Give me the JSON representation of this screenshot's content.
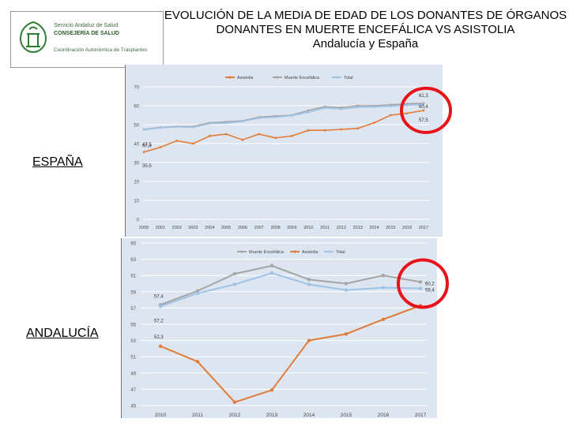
{
  "logo": {
    "line1": "Servicio Andaluz de Salud",
    "line2": "CONSEJERÍA DE SALUD",
    "line3": "Coordinación Autonómica de Trasplantes"
  },
  "title": {
    "line1": "EVOLUCIÓN DE LA MEDIA DE EDAD DE LOS DONANTES DE ÓRGANOS",
    "line2": "DONANTES EN MUERTE ENCEFÁLICA VS ASISTOLIA",
    "line3": "Andalucía y España"
  },
  "labels": {
    "spain": "ESPAÑA",
    "andalucia": "ANDALUCÍA"
  },
  "colors": {
    "asistolia": "#e07b39",
    "muerte_encefalica": "#a5a5a5",
    "total": "#9dc3e6",
    "panel": "#dde6f0",
    "highlight": "#e8141b"
  },
  "chart_data": [
    {
      "type": "line",
      "categories": [
        "2000",
        "2001",
        "2002",
        "2003",
        "2004",
        "2005",
        "2006",
        "2007",
        "2008",
        "2009",
        "2010",
        "2011",
        "2012",
        "2013",
        "2014",
        "2015",
        "2016",
        "2017"
      ],
      "ylim": [
        0,
        70
      ],
      "yticks": [
        "0",
        "10",
        "20",
        "30",
        "40",
        "50",
        "60",
        "70"
      ],
      "legend_position": "top",
      "series": [
        {
          "name": "Asistolia",
          "color": "#e07b39",
          "values": [
            35.5,
            38,
            41.5,
            40,
            44,
            45,
            42,
            45,
            43,
            44,
            47,
            47,
            47.5,
            48,
            51,
            55,
            56,
            57.5
          ]
        },
        {
          "name": "Muerte Encefálica",
          "color": "#a5a5a5",
          "values": [
            47.5,
            48.5,
            49,
            49,
            51,
            51.5,
            52,
            54,
            54.5,
            55,
            57.5,
            59.5,
            59,
            60,
            60,
            60.5,
            61,
            61.3
          ]
        },
        {
          "name": "Total",
          "color": "#9dc3e6",
          "values": [
            47.3,
            48.3,
            48.8,
            48.6,
            50.6,
            50.8,
            51.7,
            53.5,
            54,
            54.8,
            56.5,
            58.8,
            58.2,
            59.2,
            59.4,
            59.7,
            60.3,
            60.4
          ]
        }
      ],
      "data_labels": [
        "47,5",
        "47,3",
        "35,5",
        "61,3",
        "60,4",
        "57,5"
      ]
    },
    {
      "type": "line",
      "categories": [
        "2010",
        "2011",
        "2012",
        "2013",
        "2014",
        "2015",
        "2016",
        "2017"
      ],
      "ylim": [
        45,
        65
      ],
      "yticks": [
        "45",
        "47",
        "49",
        "51",
        "53",
        "55",
        "57",
        "59",
        "61",
        "63",
        "65"
      ],
      "legend_position": "top",
      "series": [
        {
          "name": "Muerte Encefálica",
          "color": "#a5a5a5",
          "values": [
            57.4,
            59.1,
            61.2,
            62.2,
            60.5,
            60.0,
            61.0,
            60.2
          ]
        },
        {
          "name": "Asistolia",
          "color": "#e07b39",
          "values": [
            52.3,
            50.4,
            45.4,
            46.9,
            53.0,
            53.8,
            55.6,
            57.3
          ]
        },
        {
          "name": "Total",
          "color": "#9dc3e6",
          "values": [
            57.2,
            58.8,
            59.9,
            61.3,
            59.9,
            59.2,
            59.5,
            59.4
          ]
        }
      ],
      "data_labels": [
        "57,4",
        "57,2",
        "52,3",
        "60,2",
        "59,4"
      ]
    }
  ]
}
